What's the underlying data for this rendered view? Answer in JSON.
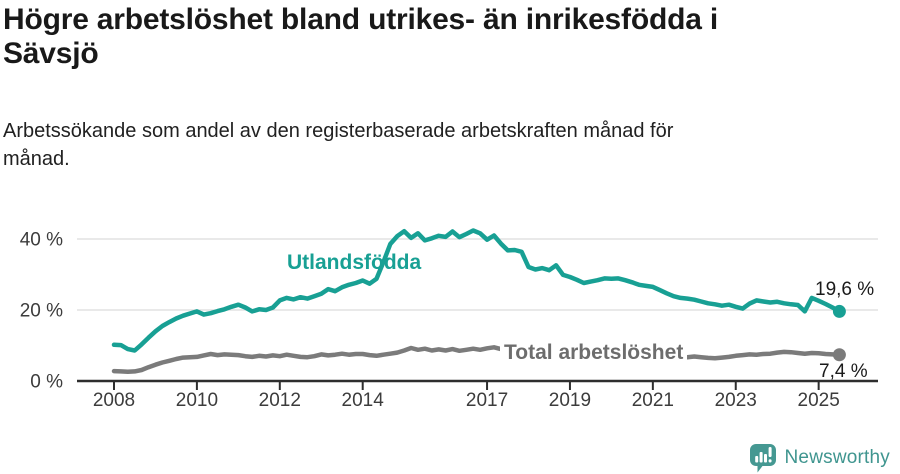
{
  "header": {
    "title": "Högre arbetslöshet bland utrikes- än inrikesfödda i Sävsjö",
    "subtitle": "Arbetssökande som andel av den registerbaserade arbetskraften månad för månad."
  },
  "chart_data": {
    "type": "line",
    "title": "Högre arbetslöshet bland utrikes- än inrikesfödda i Sävsjö",
    "title_lines": [
      "Högre arbetslöshet bland utrikes- än inrikesfödda i",
      "Sävsjö"
    ],
    "subtitle_lines": [
      "Arbetssökande som andel av den registerbaserade arbetskraften månad för",
      "månad."
    ],
    "x_unit": "year, monthly observations plotted every 2 months",
    "x_start": 2008.0,
    "x_step_years": 0.16667,
    "x_end": 2025.5,
    "xlim": [
      2007.9,
      2026.5
    ],
    "ylim": [
      0,
      45
    ],
    "xticks": [
      2008,
      2010,
      2012,
      2014,
      2017,
      2019,
      2021,
      2023,
      2025
    ],
    "yticks": [
      0,
      20,
      40
    ],
    "ytick_suffix": " %",
    "grid": "horizontal gridlines at 20 % and 40 %, dark baseline at 0 %",
    "legend_position": "inline labels on chart",
    "series": [
      {
        "name": "Utlandsfödda",
        "color": "#18a094",
        "end_value": 19.6,
        "end_label": "19,6 %",
        "values": [
          10.2,
          10.1,
          9.0,
          8.6,
          10.3,
          12.2,
          14.0,
          15.5,
          16.6,
          17.6,
          18.4,
          19.0,
          19.6,
          18.7,
          19.1,
          19.7,
          20.2,
          20.9,
          21.5,
          20.7,
          19.6,
          20.2,
          20.0,
          20.7,
          22.7,
          23.4,
          23.0,
          23.6,
          23.2,
          23.9,
          24.6,
          25.9,
          25.3,
          26.4,
          27.1,
          27.6,
          28.3,
          27.4,
          28.8,
          33.5,
          38.6,
          40.8,
          42.2,
          40.3,
          41.6,
          39.6,
          40.2,
          40.9,
          40.6,
          42.1,
          40.5,
          41.4,
          42.4,
          41.6,
          39.8,
          41.0,
          38.7,
          36.8,
          36.9,
          36.4,
          32.1,
          31.4,
          31.8,
          31.2,
          32.6,
          29.9,
          29.3,
          28.5,
          27.6,
          28.0,
          28.4,
          28.9,
          28.8,
          28.9,
          28.4,
          27.8,
          27.1,
          26.8,
          26.5,
          25.6,
          24.7,
          23.9,
          23.4,
          23.2,
          22.9,
          22.4,
          21.9,
          21.6,
          21.2,
          21.5,
          20.9,
          20.4,
          21.8,
          22.7,
          22.4,
          22.1,
          22.3,
          21.9,
          21.6,
          21.4,
          19.6,
          23.4,
          22.6,
          21.7,
          20.7,
          19.6
        ]
      },
      {
        "name": "Total arbetslöshet",
        "color": "#7b7b7b",
        "end_value": 7.4,
        "end_label": "7,4 %",
        "values": [
          2.8,
          2.7,
          2.6,
          2.7,
          3.1,
          3.9,
          4.6,
          5.2,
          5.7,
          6.2,
          6.6,
          6.7,
          6.8,
          7.2,
          7.6,
          7.3,
          7.5,
          7.4,
          7.3,
          7.0,
          6.8,
          7.1,
          6.9,
          7.2,
          7.0,
          7.4,
          7.1,
          6.8,
          6.7,
          7.0,
          7.5,
          7.2,
          7.4,
          7.7,
          7.4,
          7.6,
          7.6,
          7.3,
          7.1,
          7.4,
          7.7,
          8.0,
          8.6,
          9.3,
          8.8,
          9.1,
          8.6,
          8.9,
          8.6,
          9.0,
          8.5,
          8.8,
          9.1,
          8.8,
          9.2,
          9.5,
          9.0,
          8.7,
          8.5,
          8.3,
          8.1,
          7.9,
          7.7,
          7.8,
          7.6,
          7.4,
          7.3,
          7.1,
          7.0,
          7.2,
          7.4,
          7.6,
          7.9,
          8.3,
          8.1,
          7.9,
          7.7,
          7.5,
          7.4,
          7.2,
          7.0,
          6.9,
          6.8,
          6.7,
          6.9,
          6.7,
          6.5,
          6.4,
          6.6,
          6.8,
          7.1,
          7.3,
          7.5,
          7.4,
          7.6,
          7.7,
          8.0,
          8.2,
          8.1,
          7.9,
          7.7,
          7.9,
          7.8,
          7.6,
          7.5,
          7.4
        ]
      }
    ],
    "colors": {
      "axis": "#2e2e2e",
      "gridline": "#dcdcdc",
      "tick_text": "#3c3c3c",
      "annotation_text": "#1a1a1a"
    }
  },
  "footer": {
    "brand_name": "Newsworthy",
    "brand_color": "#3f958f",
    "icon": "newsworthy-bar-chart-bubble-icon"
  }
}
